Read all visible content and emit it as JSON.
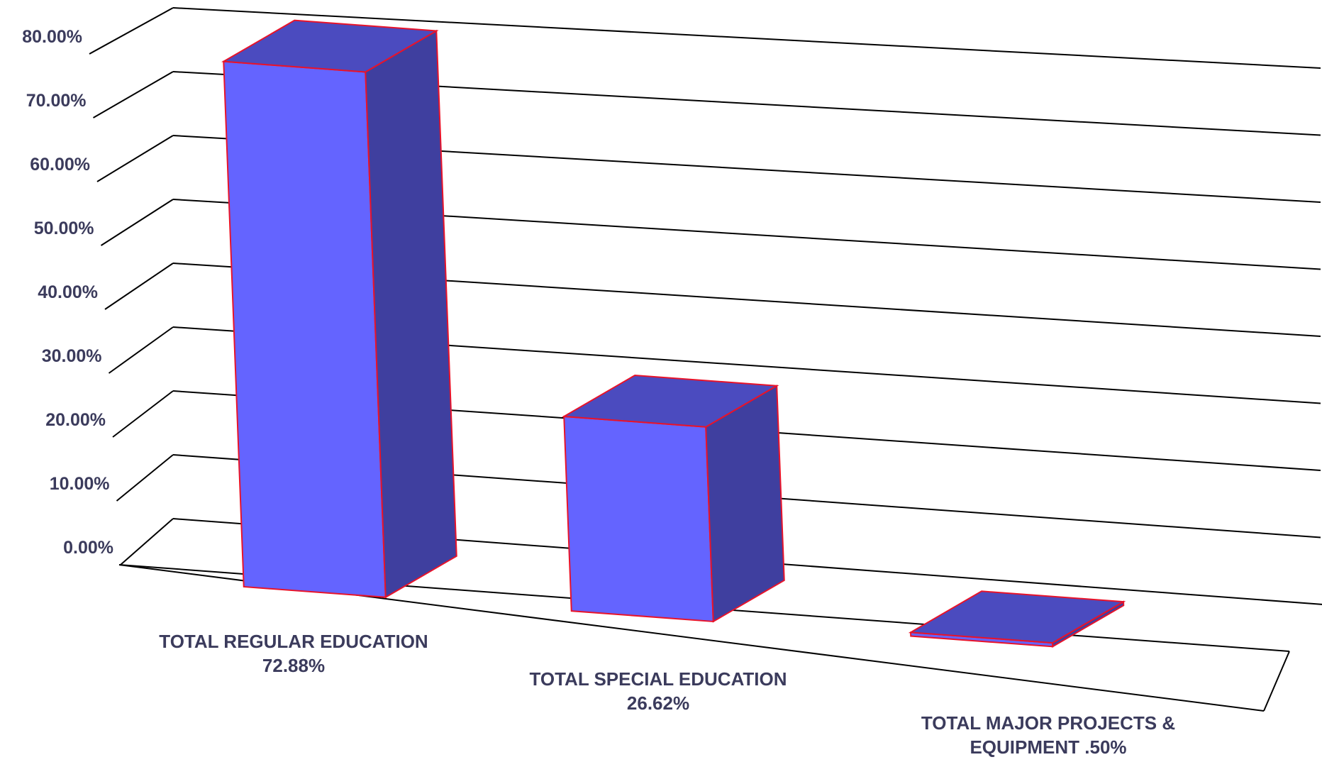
{
  "chart_data": {
    "type": "bar",
    "categories": [
      [
        "TOTAL REGULAR EDUCATION",
        "72.88%"
      ],
      [
        "TOTAL SPECIAL EDUCATION",
        "26.62%"
      ],
      [
        "TOTAL MAJOR PROJECTS &",
        "EQUIPMENT .50%"
      ]
    ],
    "values": [
      72.88,
      26.62,
      0.5
    ],
    "ylim": [
      0,
      80
    ],
    "yticks": [
      "0.00%",
      "10.00%",
      "20.00%",
      "30.00%",
      "40.00%",
      "50.00%",
      "60.00%",
      "70.00%",
      "80.00%"
    ],
    "title": "",
    "xlabel": "",
    "ylabel": "",
    "grid": true,
    "colors": {
      "front": "#6464ff",
      "top": "#4b4bbf",
      "side": "#3f3f9f",
      "edge": "#e8132a",
      "text": "#3b3b5c"
    }
  }
}
